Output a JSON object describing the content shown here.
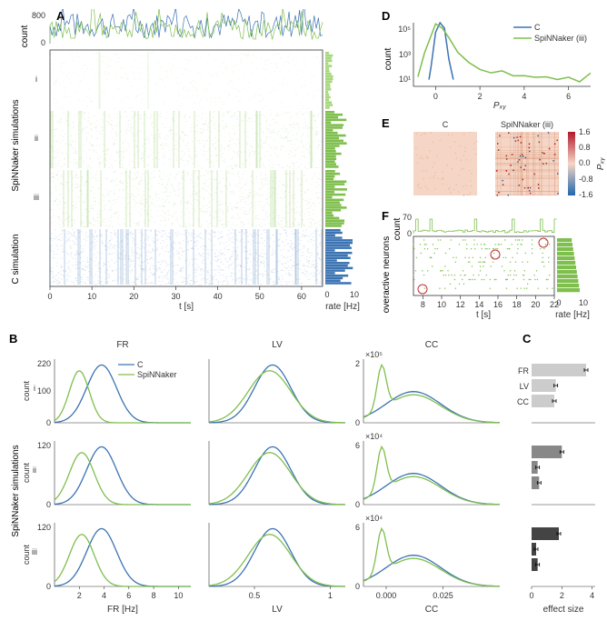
{
  "colors": {
    "c_sim": "#3b73b3",
    "spinnaker": "#7fbf4d",
    "spinnaker_light": "#a6d77a",
    "heatmap_mid": "#f5d6c6",
    "heatmap_high": "#b2182b",
    "heatmap_low": "#2166ac",
    "grey_light": "#cccccc",
    "grey_mid": "#888888",
    "grey_dark": "#444444",
    "axis": "#333333",
    "circle_red": "#c43030"
  },
  "panelA": {
    "label": "A",
    "xaxis": {
      "label": "t [s]",
      "ticks": [
        0,
        10,
        20,
        30,
        40,
        50,
        60
      ],
      "lim": [
        0,
        65
      ]
    },
    "rate_axis": {
      "label": "rate [Hz]",
      "ticks": [
        0,
        10
      ]
    },
    "count_axis": {
      "label": "count",
      "ticks": [
        0,
        800
      ]
    },
    "rows": [
      "i",
      "ii",
      "iii"
    ],
    "side_label_spinnaker": "SpiNNaker simulations",
    "side_label_c": "C simulation"
  },
  "panelB": {
    "label": "B",
    "cols": [
      "FR",
      "LV",
      "CC"
    ],
    "rows": [
      "i",
      "ii",
      "iii"
    ],
    "side_label": "SpiNNaker simulations",
    "legend": {
      "c": "C",
      "spinnaker": "SpiNNaker"
    },
    "fr_axis": {
      "label": "FR [Hz]",
      "ticks": [
        2,
        4,
        6,
        8,
        10
      ],
      "lim": [
        0,
        11
      ]
    },
    "lv_axis": {
      "label": "LV",
      "ticks": [
        0.5,
        1.0
      ],
      "lim": [
        0.2,
        1.1
      ]
    },
    "cc_axis": {
      "label": "CC",
      "ticks": [
        0.0,
        0.025
      ],
      "lim": [
        -0.01,
        0.05
      ]
    },
    "count_label": "count",
    "fr_ymax": [
      220,
      120,
      120
    ],
    "cc_ytop_labels": [
      "×10⁵",
      "×10⁴",
      "×10⁴"
    ],
    "cc_ymax": [
      2,
      6,
      6
    ]
  },
  "panelC": {
    "label": "C",
    "metrics": [
      "FR",
      "LV",
      "CC"
    ],
    "xaxis": {
      "label": "effect size",
      "ticks": [
        0,
        2,
        4
      ]
    },
    "values": {
      "i": [
        3.6,
        1.6,
        1.5
      ],
      "ii": [
        2.0,
        0.4,
        0.5
      ],
      "iii": [
        1.8,
        0.3,
        0.4
      ]
    }
  },
  "panelD": {
    "label": "D",
    "legend": {
      "c": "C",
      "spinnaker": "SpiNNaker (iii)"
    },
    "xaxis": {
      "label": "Pₓᵧ",
      "ticks": [
        0,
        2,
        4,
        6
      ],
      "lim": [
        -1,
        7
      ]
    },
    "yaxis": {
      "label": "count",
      "ticks_log": [
        1,
        3,
        5
      ],
      "tick_labels": [
        "10¹",
        "10³",
        "10⁵"
      ]
    }
  },
  "panelE": {
    "label": "E",
    "left_title": "C",
    "right_title": "SpiNNaker (iii)",
    "colorbar": {
      "label": "Pₓᵧ",
      "ticks": [
        -1.6,
        -0.8,
        0.0,
        0.8,
        1.6
      ]
    }
  },
  "panelF": {
    "label": "F",
    "yaxis": {
      "label": "overactive neurons"
    },
    "count_axis": {
      "label": "count",
      "ticks": [
        0,
        70
      ]
    },
    "xaxis": {
      "label": "t [s]",
      "ticks": [
        8,
        10,
        12,
        14,
        16,
        18,
        20,
        22
      ],
      "lim": [
        7,
        22
      ]
    },
    "rate_axis": {
      "label": "rate [Hz]",
      "ticks": [
        0,
        10
      ]
    }
  }
}
